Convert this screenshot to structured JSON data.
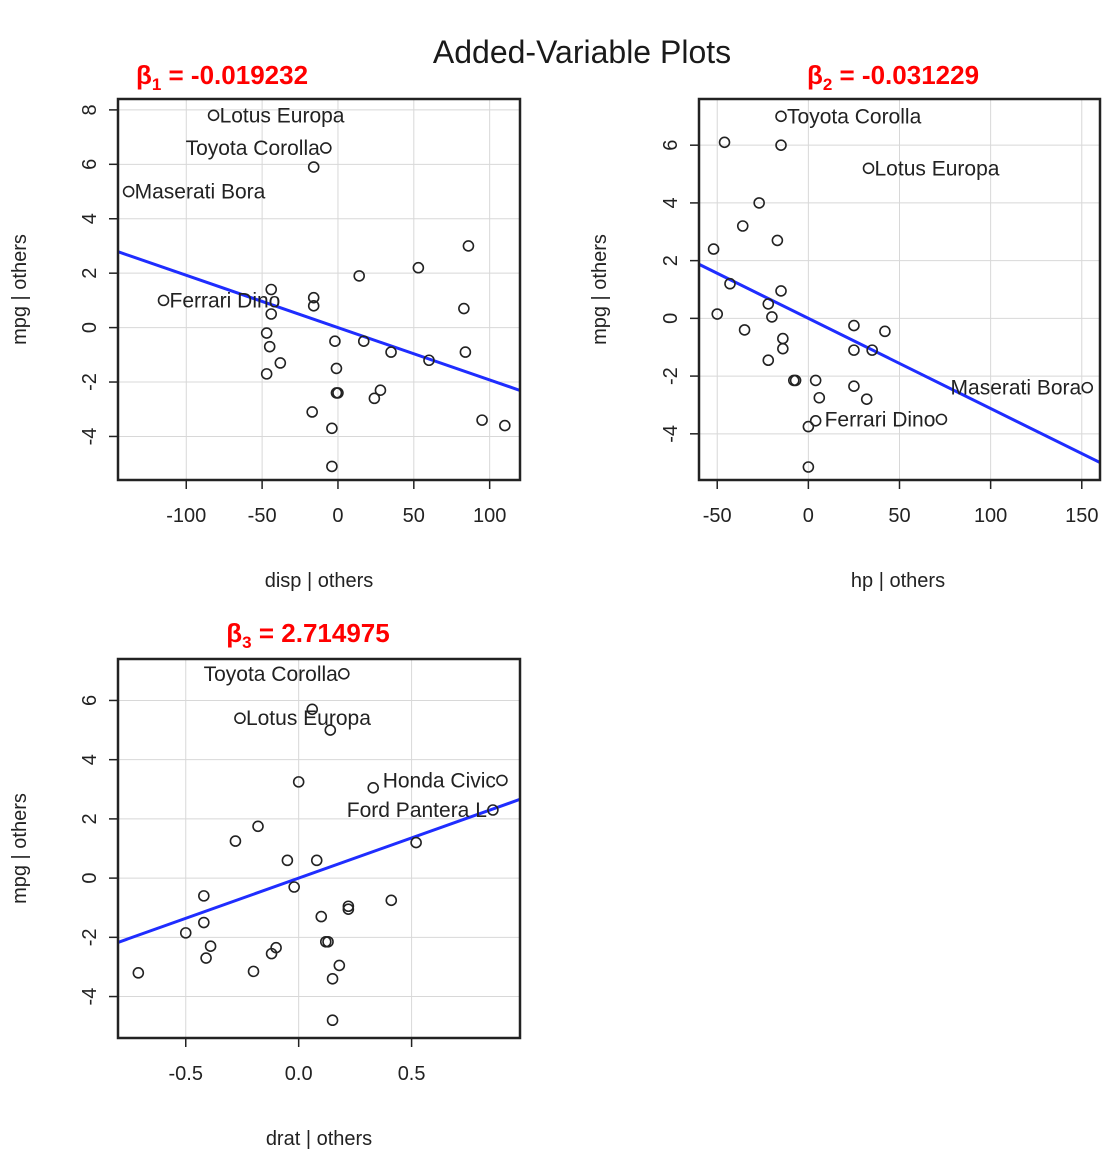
{
  "figure": {
    "title": "Added-Variable Plots"
  },
  "chart_data": [
    {
      "type": "scatter",
      "id": "disp",
      "annotation": "β",
      "annotation_sub": "1",
      "annotation_value": " = -0.019232",
      "xlabel": "disp | others",
      "ylabel": "mpg  | others",
      "xlim": [
        -145,
        120
      ],
      "ylim": [
        -5.6,
        8.4
      ],
      "xticks": [
        -100,
        -50,
        0,
        50,
        100
      ],
      "yticks": [
        -4,
        -2,
        0,
        2,
        4,
        6,
        8
      ],
      "grid": true,
      "fit_line": {
        "slope": -0.019232,
        "intercept": 0,
        "color": "#1f2dff"
      },
      "points": [
        {
          "x": -82,
          "y": 7.8,
          "label": "Lotus Europa",
          "label_side": "right"
        },
        {
          "x": -8,
          "y": 6.6,
          "label": "Toyota Corolla",
          "label_side": "left"
        },
        {
          "x": -138,
          "y": 5.0,
          "label": "Maserati Bora",
          "label_side": "right"
        },
        {
          "x": -115,
          "y": 1.0,
          "label": "Ferrari Dino",
          "label_side": "right"
        },
        {
          "x": -16,
          "y": 5.9
        },
        {
          "x": 86,
          "y": 3.0
        },
        {
          "x": 53,
          "y": 2.2
        },
        {
          "x": 14,
          "y": 1.9
        },
        {
          "x": -44,
          "y": 1.4
        },
        {
          "x": -16,
          "y": 1.1
        },
        {
          "x": -16,
          "y": 0.8
        },
        {
          "x": -44,
          "y": 0.5
        },
        {
          "x": 83,
          "y": 0.7
        },
        {
          "x": -47,
          "y": -0.2
        },
        {
          "x": -45,
          "y": -0.7
        },
        {
          "x": -2,
          "y": -0.5
        },
        {
          "x": 17,
          "y": -0.5
        },
        {
          "x": 35,
          "y": -0.9
        },
        {
          "x": 84,
          "y": -0.9
        },
        {
          "x": -38,
          "y": -1.3
        },
        {
          "x": 60,
          "y": -1.2
        },
        {
          "x": -47,
          "y": -1.7
        },
        {
          "x": -1,
          "y": -1.5
        },
        {
          "x": 28,
          "y": -2.3
        },
        {
          "x": 24,
          "y": -2.6
        },
        {
          "x": -1,
          "y": -2.4
        },
        {
          "x": 0,
          "y": -2.4
        },
        {
          "x": -17,
          "y": -3.1
        },
        {
          "x": -4,
          "y": -3.7
        },
        {
          "x": 95,
          "y": -3.4
        },
        {
          "x": 110,
          "y": -3.6
        },
        {
          "x": -4,
          "y": -5.1
        }
      ]
    },
    {
      "type": "scatter",
      "id": "hp",
      "annotation": "β",
      "annotation_sub": "2",
      "annotation_value": " = -0.031229",
      "xlabel": "hp | others",
      "ylabel": "mpg  | others",
      "xlim": [
        -60,
        160
      ],
      "ylim": [
        -5.6,
        7.6
      ],
      "xticks": [
        -50,
        0,
        50,
        100,
        150
      ],
      "yticks": [
        -4,
        -2,
        0,
        2,
        4,
        6
      ],
      "grid": true,
      "fit_line": {
        "slope": -0.031229,
        "intercept": 0,
        "color": "#1f2dff"
      },
      "points": [
        {
          "x": -15,
          "y": 7.0,
          "label": "Toyota Corolla",
          "label_side": "right"
        },
        {
          "x": 33,
          "y": 5.2,
          "label": "Lotus Europa",
          "label_side": "right"
        },
        {
          "x": 153,
          "y": -2.4,
          "label": "Maserati Bora",
          "label_side": "left"
        },
        {
          "x": 73,
          "y": -3.5,
          "label": "Ferrari Dino",
          "label_side": "left"
        },
        {
          "x": -46,
          "y": 6.1
        },
        {
          "x": -15,
          "y": 6.0
        },
        {
          "x": -27,
          "y": 4.0
        },
        {
          "x": -36,
          "y": 3.2
        },
        {
          "x": -17,
          "y": 2.7
        },
        {
          "x": -52,
          "y": 2.4
        },
        {
          "x": -43,
          "y": 1.2
        },
        {
          "x": -15,
          "y": 0.95
        },
        {
          "x": -22,
          "y": 0.5
        },
        {
          "x": -20,
          "y": 0.05
        },
        {
          "x": -50,
          "y": 0.15
        },
        {
          "x": -35,
          "y": -0.4
        },
        {
          "x": -14,
          "y": -0.7
        },
        {
          "x": -14,
          "y": -1.05
        },
        {
          "x": -22,
          "y": -1.45
        },
        {
          "x": 25,
          "y": -0.25
        },
        {
          "x": 42,
          "y": -0.45
        },
        {
          "x": 25,
          "y": -1.1
        },
        {
          "x": 35,
          "y": -1.1
        },
        {
          "x": -8,
          "y": -2.15
        },
        {
          "x": -7,
          "y": -2.15
        },
        {
          "x": 4,
          "y": -2.15
        },
        {
          "x": 25,
          "y": -2.35
        },
        {
          "x": 32,
          "y": -2.8
        },
        {
          "x": 6,
          "y": -2.75
        },
        {
          "x": 4,
          "y": -3.55
        },
        {
          "x": 0,
          "y": -3.75
        },
        {
          "x": 0,
          "y": -5.15
        }
      ]
    },
    {
      "type": "scatter",
      "id": "drat",
      "annotation": "β",
      "annotation_sub": "3",
      "annotation_value": " = 2.714975",
      "xlabel": "drat | others",
      "ylabel": "mpg  | others",
      "xlim": [
        -0.8,
        0.98
      ],
      "ylim": [
        -5.4,
        7.4
      ],
      "xticks": [
        -0.5,
        0.0,
        0.5
      ],
      "xtick_labels": [
        "-0.5",
        "0.0",
        "0.5"
      ],
      "yticks": [
        -4,
        -2,
        0,
        2,
        4,
        6
      ],
      "grid": true,
      "fit_line": {
        "slope": 2.714975,
        "intercept": 0,
        "color": "#1f2dff"
      },
      "points": [
        {
          "x": 0.2,
          "y": 6.9,
          "label": "Toyota Corolla",
          "label_side": "left"
        },
        {
          "x": -0.26,
          "y": 5.4,
          "label": "Lotus Europa",
          "label_side": "right"
        },
        {
          "x": 0.9,
          "y": 3.3,
          "label": "Honda Civic",
          "label_side": "left"
        },
        {
          "x": 0.86,
          "y": 2.3,
          "label": "Ford Pantera L",
          "label_side": "left"
        },
        {
          "x": 0.06,
          "y": 5.7
        },
        {
          "x": 0.14,
          "y": 5.0
        },
        {
          "x": 0.0,
          "y": 3.25
        },
        {
          "x": 0.33,
          "y": 3.05
        },
        {
          "x": -0.18,
          "y": 1.75
        },
        {
          "x": -0.28,
          "y": 1.25
        },
        {
          "x": 0.52,
          "y": 1.2
        },
        {
          "x": -0.05,
          "y": 0.6
        },
        {
          "x": 0.08,
          "y": 0.6
        },
        {
          "x": -0.02,
          "y": -0.3
        },
        {
          "x": -0.42,
          "y": -0.6
        },
        {
          "x": 0.41,
          "y": -0.75
        },
        {
          "x": 0.22,
          "y": -0.95
        },
        {
          "x": 0.22,
          "y": -1.05
        },
        {
          "x": 0.1,
          "y": -1.3
        },
        {
          "x": -0.42,
          "y": -1.5
        },
        {
          "x": -0.5,
          "y": -1.85
        },
        {
          "x": 0.12,
          "y": -2.15
        },
        {
          "x": 0.13,
          "y": -2.15
        },
        {
          "x": -0.39,
          "y": -2.3
        },
        {
          "x": -0.1,
          "y": -2.35
        },
        {
          "x": -0.12,
          "y": -2.55
        },
        {
          "x": -0.41,
          "y": -2.7
        },
        {
          "x": 0.18,
          "y": -2.95
        },
        {
          "x": -0.2,
          "y": -3.15
        },
        {
          "x": 0.15,
          "y": -3.4
        },
        {
          "x": -0.71,
          "y": -3.2
        },
        {
          "x": 0.15,
          "y": -4.8
        }
      ]
    }
  ]
}
